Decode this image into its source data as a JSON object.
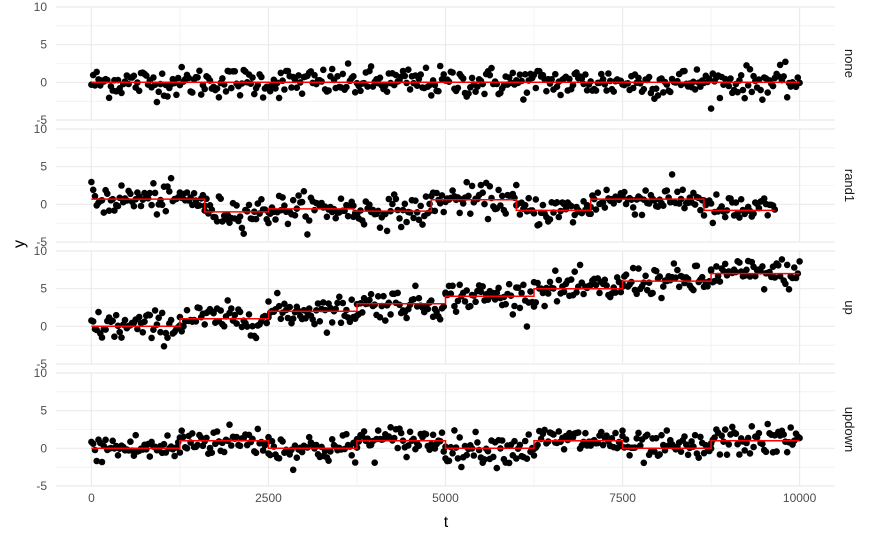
{
  "chart_data": {
    "type": "scatter",
    "xlabel": "t",
    "ylabel": "y",
    "xlim": [
      -500,
      10500
    ],
    "ylim": [
      -5,
      10
    ],
    "x_ticks": [
      0,
      2500,
      5000,
      7500,
      10000
    ],
    "x_tick_labels": [
      "0",
      "2500",
      "5000",
      "7500",
      "10000"
    ],
    "y_ticks": [
      -5,
      0,
      5,
      10
    ],
    "y_tick_labels": [
      "-5",
      "0",
      "5",
      "10"
    ],
    "grid": true,
    "point_color": "#000000",
    "line_color": "#ff0000",
    "grid_color": "#ebebeb",
    "point_noise_sd": 1.0,
    "point_x_step": 25,
    "panels": [
      {
        "label": "none",
        "x_range": [
          0,
          10000
        ],
        "steps": [
          {
            "x_start": 0,
            "x_end": 10000,
            "mean": 0
          }
        ]
      },
      {
        "label": "rand1",
        "x_range": [
          0,
          9650
        ],
        "steps": [
          {
            "x_start": 0,
            "x_end": 1600,
            "mean": 0.7
          },
          {
            "x_start": 1600,
            "x_end": 2500,
            "mean": -1.0
          },
          {
            "x_start": 2500,
            "x_end": 3700,
            "mean": -0.6
          },
          {
            "x_start": 3700,
            "x_end": 4800,
            "mean": -0.9
          },
          {
            "x_start": 4800,
            "x_end": 6000,
            "mean": 0.6
          },
          {
            "x_start": 6000,
            "x_end": 7050,
            "mean": -0.8
          },
          {
            "x_start": 7050,
            "x_end": 8650,
            "mean": 0.7
          },
          {
            "x_start": 8650,
            "x_end": 9650,
            "mean": -0.8
          }
        ]
      },
      {
        "label": "up",
        "x_range": [
          0,
          10000
        ],
        "steps": [
          {
            "x_start": 0,
            "x_end": 1250,
            "mean": 0
          },
          {
            "x_start": 1250,
            "x_end": 2500,
            "mean": 1
          },
          {
            "x_start": 2500,
            "x_end": 3750,
            "mean": 2
          },
          {
            "x_start": 3750,
            "x_end": 5000,
            "mean": 3
          },
          {
            "x_start": 5000,
            "x_end": 6250,
            "mean": 4
          },
          {
            "x_start": 6250,
            "x_end": 7500,
            "mean": 5
          },
          {
            "x_start": 7500,
            "x_end": 8750,
            "mean": 6
          },
          {
            "x_start": 8750,
            "x_end": 10000,
            "mean": 7
          }
        ]
      },
      {
        "label": "updown",
        "x_range": [
          0,
          10000
        ],
        "steps": [
          {
            "x_start": 0,
            "x_end": 1250,
            "mean": 0
          },
          {
            "x_start": 1250,
            "x_end": 2500,
            "mean": 1
          },
          {
            "x_start": 2500,
            "x_end": 3750,
            "mean": 0
          },
          {
            "x_start": 3750,
            "x_end": 5000,
            "mean": 1
          },
          {
            "x_start": 5000,
            "x_end": 6250,
            "mean": 0
          },
          {
            "x_start": 6250,
            "x_end": 7500,
            "mean": 1
          },
          {
            "x_start": 7500,
            "x_end": 8750,
            "mean": 0
          },
          {
            "x_start": 8750,
            "x_end": 10000,
            "mean": 1
          }
        ]
      }
    ]
  }
}
